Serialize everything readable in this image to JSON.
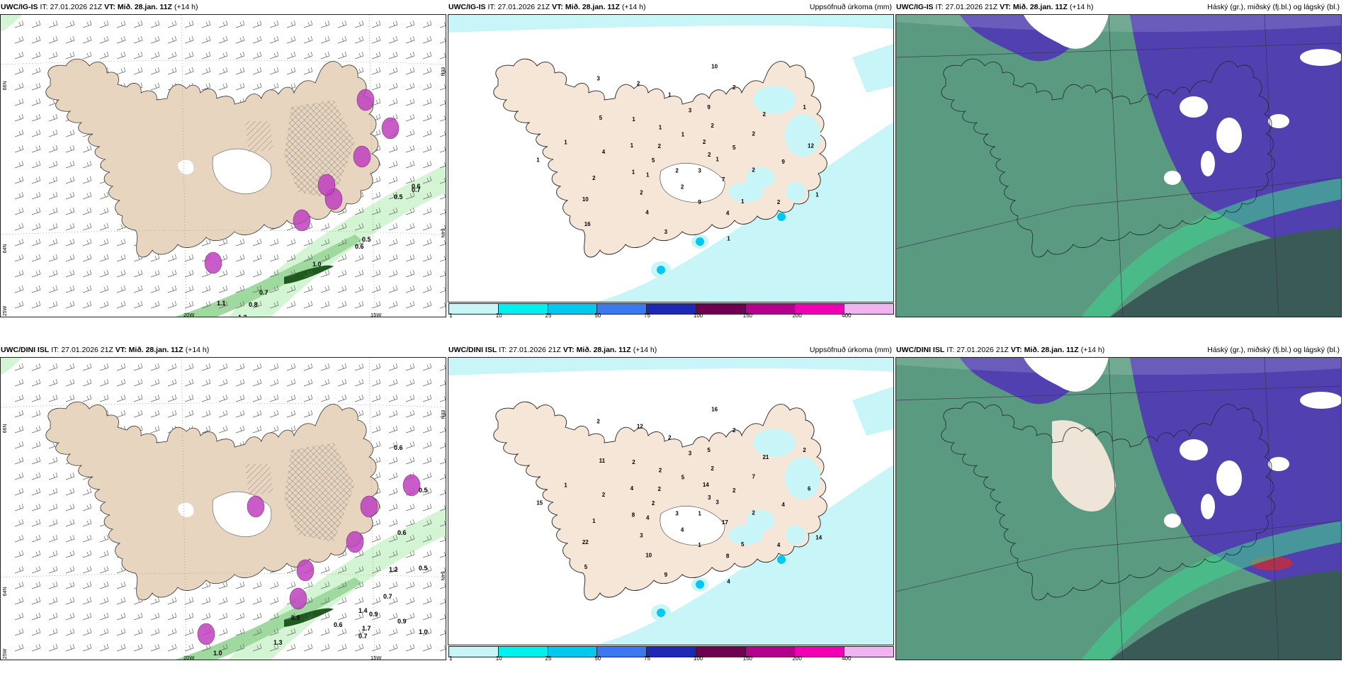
{
  "panels": [
    {
      "model": "UWC/IG-IS",
      "it_label": "IT:",
      "it_value": "27.01.2026 21Z",
      "vt_label": "VT:",
      "vt_value": "Mið. 28.jan. 11Z",
      "lead": "(+14 h)",
      "right_title": "",
      "type": "wind-precip",
      "lat_labels": [
        "66N",
        "64N",
        "25W"
      ],
      "lon_labels": [
        "20W",
        "15W"
      ],
      "right_lat_labels": [
        "66N",
        "64N"
      ],
      "values": [
        "0.5",
        "0.7",
        "0.6",
        "0.5",
        "0.6",
        "1.0",
        "0.7",
        "0.8",
        "1.2",
        "1.1"
      ]
    },
    {
      "model": "UWC/IG-IS",
      "it_label": "IT:",
      "it_value": "27.01.2026 21Z",
      "vt_label": "VT:",
      "vt_value": "Mið. 28.jan. 11Z",
      "lead": "(+14 h)",
      "right_title": "Uppsöfnuð úrkoma (mm)",
      "type": "accum-precip",
      "lat_labels": [],
      "lon_labels": [],
      "right_lat_labels": [],
      "values": [
        "2",
        "1",
        "3",
        "1",
        "1",
        "1",
        "2",
        "1",
        "2",
        "2",
        "2",
        "1",
        "2",
        "5",
        "2",
        "1",
        "2",
        "1",
        "2",
        "2",
        "1",
        "9",
        "10",
        "10",
        "3",
        "1",
        "2",
        "4",
        "2",
        "1",
        "5",
        "2",
        "9",
        "5",
        "12",
        "16",
        "1",
        "7",
        "4",
        "2",
        "3",
        "3",
        "1",
        "1",
        "9",
        "4"
      ]
    },
    {
      "model": "UWC/IG-IS",
      "it_label": "IT:",
      "it_value": "27.01.2026 21Z",
      "vt_label": "VT:",
      "vt_value": "Mið. 28.jan. 11Z",
      "lead": "(+14 h)",
      "right_title": "Háský (gr.), miðský (fj.bl.) og lágský (bl.)",
      "type": "clouds",
      "lat_labels": [],
      "lon_labels": [],
      "right_lat_labels": [],
      "values": []
    },
    {
      "model": "UWC/DINI ISL",
      "it_label": "IT:",
      "it_value": "27.01.2026 21Z",
      "vt_label": "VT:",
      "vt_value": "Mið. 28.jan. 11Z",
      "lead": "(+14 h)",
      "right_title": "",
      "type": "wind-precip",
      "lat_labels": [
        "66N",
        "64N",
        "25W"
      ],
      "lon_labels": [
        "20W",
        "15W"
      ],
      "right_lat_labels": [
        "66N",
        "64N"
      ],
      "values": [
        "0.6",
        "0.5",
        "0.6",
        "0.5",
        "1.2",
        "0.7",
        "0.9",
        "1.0",
        "0.6",
        "0.5",
        "1.4",
        "0.9",
        "1.7",
        "0.7",
        "1.0",
        "1.3"
      ]
    },
    {
      "model": "UWC/DINI ISL",
      "it_label": "IT:",
      "it_value": "27.01.2026 21Z",
      "vt_label": "VT:",
      "vt_value": "Mið. 28.jan. 11Z",
      "lead": "(+14 h)",
      "right_title": "Uppsöfnuð úrkoma (mm)",
      "type": "accum-precip",
      "lat_labels": [],
      "lon_labels": [],
      "right_lat_labels": [],
      "values": [
        "3",
        "4",
        "3",
        "5",
        "1",
        "2",
        "3",
        "2",
        "2",
        "1",
        "2",
        "4",
        "2",
        "2",
        "3",
        "2",
        "4",
        "15",
        "14",
        "4",
        "2",
        "4",
        "22",
        "16",
        "1",
        "4",
        "7",
        "10",
        "12",
        "14",
        "2",
        "2",
        "1",
        "11",
        "6",
        "5",
        "5",
        "17",
        "2",
        "21",
        "9",
        "2",
        "3",
        "8",
        "5",
        "8"
      ]
    },
    {
      "model": "UWC/DINI ISL",
      "it_label": "IT:",
      "it_value": "27.01.2026 21Z",
      "vt_label": "VT:",
      "vt_value": "Mið. 28.jan. 11Z",
      "lead": "(+14 h)",
      "right_title": "Háský (gr.), miðský (fj.bl.) og lágský (bl.)",
      "type": "clouds",
      "lat_labels": [],
      "lon_labels": [],
      "right_lat_labels": [],
      "values": []
    }
  ],
  "legend": {
    "labels": [
      "1",
      "10",
      "25",
      "50",
      "75",
      "100",
      "150",
      "200",
      "400"
    ],
    "colors": [
      "#c8f5f8",
      "#00f0f0",
      "#00c8f0",
      "#3c78f0",
      "#1e28b4",
      "#6e0050",
      "#b4008c",
      "#f000b4",
      "#f0b4f0"
    ]
  },
  "colors": {
    "land": "#f5e6d8",
    "land_wind": "#e8d5c0",
    "sea_precip_light": "#c8f5f8",
    "green_light": "#d4f5d4",
    "green_dark": "#1e5a1e",
    "magenta": "#c040c0",
    "cloud_low": "#5a9a80",
    "cloud_mid": "#5040b0",
    "cloud_high": "#ffffff"
  }
}
